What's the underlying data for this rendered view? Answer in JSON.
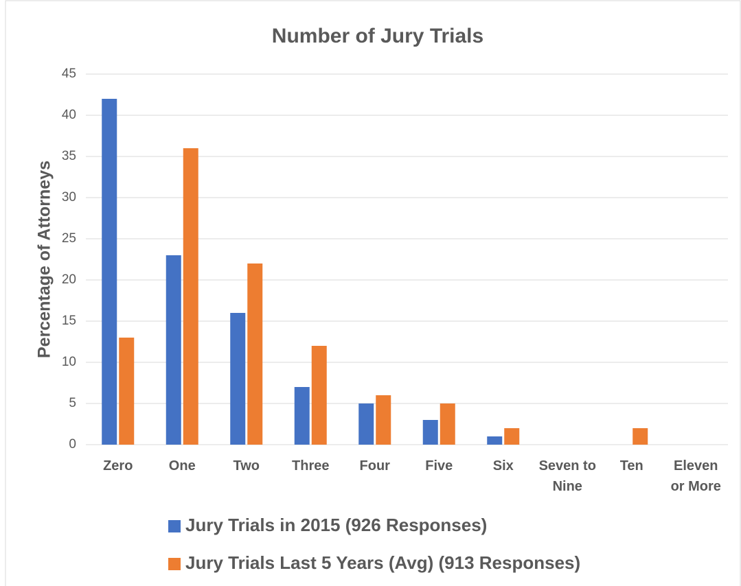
{
  "chart_data": {
    "type": "bar",
    "title": "Number of Jury Trials",
    "y_label": "Percentage of Attorneys",
    "categories": [
      "Zero",
      "One",
      "Two",
      "Three",
      "Four",
      "Five",
      "Six",
      "Seven to Nine",
      "Ten",
      "Eleven or More"
    ],
    "series": [
      {
        "name": "Jury Trials in 2015 (926 Responses)",
        "color": "#4472c4",
        "values": [
          42,
          23,
          16,
          7,
          5,
          3,
          1,
          0,
          0,
          0
        ]
      },
      {
        "name": "Jury Trials Last 5 Years (Avg) (913 Responses)",
        "color": "#ed7d31",
        "values": [
          13,
          36,
          22,
          12,
          6,
          5,
          2,
          0,
          2,
          0
        ]
      }
    ],
    "ylim": [
      0,
      45
    ],
    "yticks": [
      0,
      5,
      10,
      15,
      20,
      25,
      30,
      35,
      40,
      45
    ],
    "grid": true,
    "legend": "bottom"
  }
}
